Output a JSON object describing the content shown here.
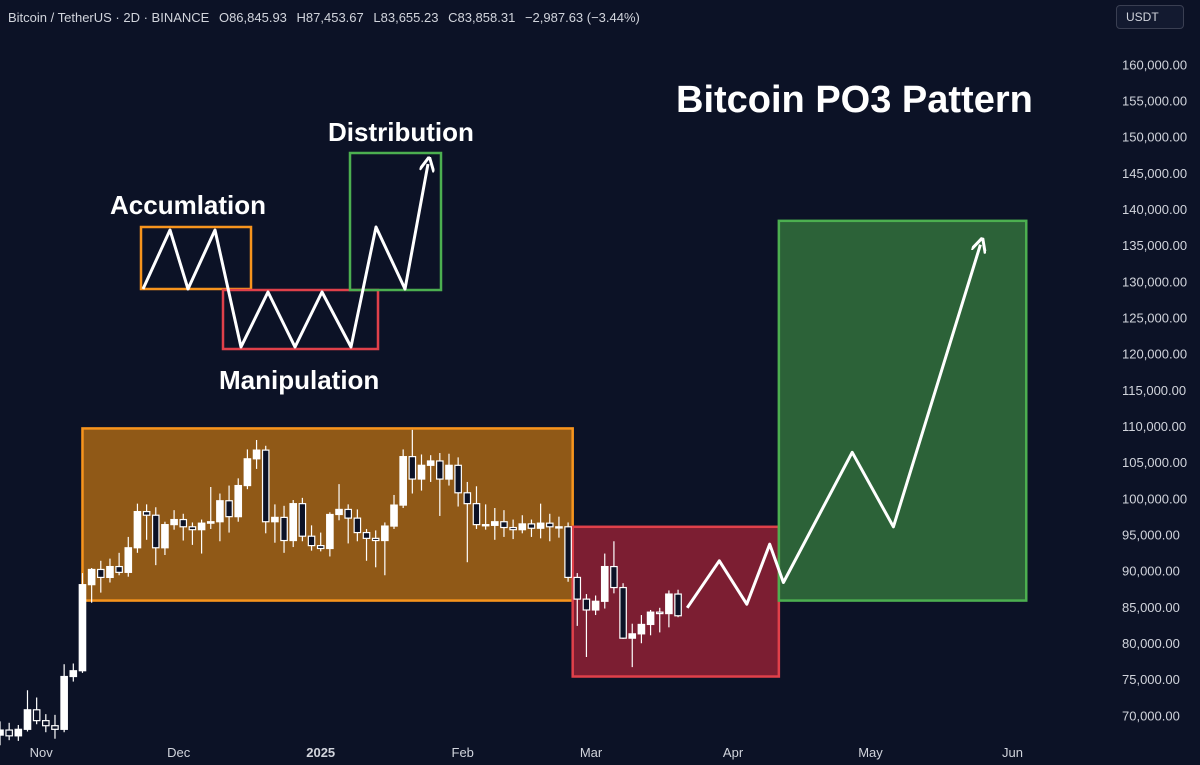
{
  "header": {
    "symbol": "Bitcoin / TetherUS · 2D · BINANCE",
    "open": "O86,845.93",
    "high": "H87,453.67",
    "low": "L83,655.23",
    "close": "C83,858.31",
    "change": "−2,987.63 (−3.44%)"
  },
  "currency_button": "USDT",
  "colors": {
    "background": "#0c1226",
    "candle": "#ffffff",
    "accumulation": "#f7941d",
    "manipulation": "#e0404a",
    "distribution": "#4caf50",
    "arrow": "#ffffff"
  },
  "chart_data": {
    "type": "candlestick",
    "title": "Bitcoin PO3 Pattern",
    "ylim": [
      67000,
      163500
    ],
    "y_ticks": [
      "160,000.00",
      "155,000.00",
      "150,000.00",
      "145,000.00",
      "140,000.00",
      "135,000.00",
      "130,000.00",
      "125,000.00",
      "120,000.00",
      "115,000.00",
      "110,000.00",
      "105,000.00",
      "100,000.00",
      "95,000.00",
      "90,000.00",
      "85,000.00",
      "80,000.00",
      "75,000.00",
      "70,000.00"
    ],
    "x_labels": [
      "Nov",
      "Dec",
      "2025",
      "Feb",
      "Mar",
      "Apr",
      "May",
      "Jun"
    ],
    "x_range": [
      "2024-10-23",
      "2025-06-07"
    ],
    "candle_interval_days": 2,
    "candles": [
      {
        "date": "2024-10-23",
        "o": 67400,
        "h": 69300,
        "l": 66000,
        "c": 68100
      },
      {
        "date": "2024-10-25",
        "o": 68100,
        "h": 69100,
        "l": 66700,
        "c": 67300
      },
      {
        "date": "2024-10-27",
        "o": 67300,
        "h": 68800,
        "l": 66600,
        "c": 68200
      },
      {
        "date": "2024-10-29",
        "o": 68200,
        "h": 73600,
        "l": 67900,
        "c": 70900
      },
      {
        "date": "2024-10-31",
        "o": 70900,
        "h": 72600,
        "l": 68900,
        "c": 69400
      },
      {
        "date": "2024-11-02",
        "o": 69400,
        "h": 70300,
        "l": 67800,
        "c": 68700
      },
      {
        "date": "2024-11-04",
        "o": 68700,
        "h": 70200,
        "l": 66900,
        "c": 68200
      },
      {
        "date": "2024-11-06",
        "o": 68200,
        "h": 77200,
        "l": 67800,
        "c": 75500
      },
      {
        "date": "2024-11-08",
        "o": 75500,
        "h": 77300,
        "l": 74800,
        "c": 76300
      },
      {
        "date": "2024-11-10",
        "o": 76300,
        "h": 89800,
        "l": 76000,
        "c": 88200
      },
      {
        "date": "2024-11-12",
        "o": 88200,
        "h": 90500,
        "l": 85700,
        "c": 90300
      },
      {
        "date": "2024-11-14",
        "o": 90300,
        "h": 91500,
        "l": 87100,
        "c": 89200
      },
      {
        "date": "2024-11-16",
        "o": 89200,
        "h": 91800,
        "l": 88500,
        "c": 90700
      },
      {
        "date": "2024-11-18",
        "o": 90700,
        "h": 92600,
        "l": 89500,
        "c": 89900
      },
      {
        "date": "2024-11-20",
        "o": 89900,
        "h": 94800,
        "l": 89300,
        "c": 93300
      },
      {
        "date": "2024-11-22",
        "o": 93300,
        "h": 99400,
        "l": 92600,
        "c": 98300
      },
      {
        "date": "2024-11-24",
        "o": 98300,
        "h": 99300,
        "l": 94400,
        "c": 97800
      },
      {
        "date": "2024-11-26",
        "o": 97800,
        "h": 98900,
        "l": 90900,
        "c": 93300
      },
      {
        "date": "2024-11-28",
        "o": 93300,
        "h": 96900,
        "l": 92300,
        "c": 96500
      },
      {
        "date": "2024-11-30",
        "o": 96500,
        "h": 98500,
        "l": 95800,
        "c": 97200
      },
      {
        "date": "2024-12-02",
        "o": 97200,
        "h": 98000,
        "l": 94300,
        "c": 96200
      },
      {
        "date": "2024-12-04",
        "o": 96200,
        "h": 96800,
        "l": 93700,
        "c": 95800
      },
      {
        "date": "2024-12-06",
        "o": 95800,
        "h": 97200,
        "l": 92500,
        "c": 96700
      },
      {
        "date": "2024-12-08",
        "o": 96700,
        "h": 101700,
        "l": 95900,
        "c": 96900
      },
      {
        "date": "2024-12-10",
        "o": 96900,
        "h": 100800,
        "l": 94200,
        "c": 99800
      },
      {
        "date": "2024-12-12",
        "o": 99800,
        "h": 101900,
        "l": 95400,
        "c": 97600
      },
      {
        "date": "2024-12-14",
        "o": 97600,
        "h": 102900,
        "l": 96900,
        "c": 101900
      },
      {
        "date": "2024-12-16",
        "o": 101900,
        "h": 106900,
        "l": 101400,
        "c": 105600
      },
      {
        "date": "2024-12-18",
        "o": 105600,
        "h": 108200,
        "l": 104200,
        "c": 106800
      },
      {
        "date": "2024-12-20",
        "o": 106800,
        "h": 107400,
        "l": 95300,
        "c": 96900
      },
      {
        "date": "2024-12-22",
        "o": 96900,
        "h": 99300,
        "l": 94000,
        "c": 97500
      },
      {
        "date": "2024-12-24",
        "o": 97500,
        "h": 99100,
        "l": 92600,
        "c": 94300
      },
      {
        "date": "2024-12-26",
        "o": 94300,
        "h": 99900,
        "l": 93400,
        "c": 99400
      },
      {
        "date": "2024-12-28",
        "o": 99400,
        "h": 100200,
        "l": 94200,
        "c": 94900
      },
      {
        "date": "2024-12-30",
        "o": 94900,
        "h": 96400,
        "l": 92900,
        "c": 93600
      },
      {
        "date": "2025-01-01",
        "o": 93600,
        "h": 95400,
        "l": 92800,
        "c": 93200
      },
      {
        "date": "2025-01-03",
        "o": 93200,
        "h": 98200,
        "l": 92100,
        "c": 97900
      },
      {
        "date": "2025-01-05",
        "o": 97900,
        "h": 102100,
        "l": 97100,
        "c": 98600
      },
      {
        "date": "2025-01-07",
        "o": 98600,
        "h": 99300,
        "l": 93900,
        "c": 97400
      },
      {
        "date": "2025-01-09",
        "o": 97400,
        "h": 98600,
        "l": 94200,
        "c": 95400
      },
      {
        "date": "2025-01-11",
        "o": 95400,
        "h": 95900,
        "l": 91500,
        "c": 94600
      },
      {
        "date": "2025-01-13",
        "o": 94600,
        "h": 95700,
        "l": 90600,
        "c": 94300
      },
      {
        "date": "2025-01-15",
        "o": 94300,
        "h": 96800,
        "l": 89500,
        "c": 96300
      },
      {
        "date": "2025-01-17",
        "o": 96300,
        "h": 100600,
        "l": 95900,
        "c": 99200
      },
      {
        "date": "2025-01-19",
        "o": 99200,
        "h": 106900,
        "l": 98800,
        "c": 105900
      },
      {
        "date": "2025-01-21",
        "o": 105900,
        "h": 109600,
        "l": 100800,
        "c": 102800
      },
      {
        "date": "2025-01-23",
        "o": 102800,
        "h": 106200,
        "l": 101200,
        "c": 104700
      },
      {
        "date": "2025-01-25",
        "o": 104700,
        "h": 106100,
        "l": 102400,
        "c": 105300
      },
      {
        "date": "2025-01-27",
        "o": 105300,
        "h": 106400,
        "l": 97700,
        "c": 102800
      },
      {
        "date": "2025-01-29",
        "o": 102800,
        "h": 106300,
        "l": 101900,
        "c": 104700
      },
      {
        "date": "2025-01-31",
        "o": 104700,
        "h": 105800,
        "l": 99000,
        "c": 100900
      },
      {
        "date": "2025-02-02",
        "o": 100900,
        "h": 102400,
        "l": 91300,
        "c": 99400
      },
      {
        "date": "2025-02-04",
        "o": 99400,
        "h": 101800,
        "l": 95900,
        "c": 96500
      },
      {
        "date": "2025-02-06",
        "o": 96500,
        "h": 99300,
        "l": 95800,
        "c": 96400
      },
      {
        "date": "2025-02-08",
        "o": 96400,
        "h": 98800,
        "l": 94400,
        "c": 96900
      },
      {
        "date": "2025-02-10",
        "o": 96900,
        "h": 98500,
        "l": 94800,
        "c": 96100
      },
      {
        "date": "2025-02-12",
        "o": 96100,
        "h": 97200,
        "l": 94500,
        "c": 95800
      },
      {
        "date": "2025-02-14",
        "o": 95800,
        "h": 97800,
        "l": 95300,
        "c": 96600
      },
      {
        "date": "2025-02-16",
        "o": 96600,
        "h": 97200,
        "l": 94800,
        "c": 96000
      },
      {
        "date": "2025-02-18",
        "o": 96000,
        "h": 99400,
        "l": 94600,
        "c": 96700
      },
      {
        "date": "2025-02-20",
        "o": 96700,
        "h": 98000,
        "l": 94200,
        "c": 96200
      },
      {
        "date": "2025-02-22",
        "o": 96200,
        "h": 97600,
        "l": 94700,
        "c": 96200
      },
      {
        "date": "2025-02-24",
        "o": 96200,
        "h": 96800,
        "l": 88600,
        "c": 89200
      },
      {
        "date": "2025-02-26",
        "o": 89200,
        "h": 89800,
        "l": 82500,
        "c": 86200
      },
      {
        "date": "2025-02-28",
        "o": 86200,
        "h": 86900,
        "l": 78200,
        "c": 84700
      },
      {
        "date": "2025-03-02",
        "o": 84700,
        "h": 86700,
        "l": 84000,
        "c": 85900
      },
      {
        "date": "2025-03-04",
        "o": 85900,
        "h": 92500,
        "l": 84900,
        "c": 90700
      },
      {
        "date": "2025-03-06",
        "o": 90700,
        "h": 94200,
        "l": 87000,
        "c": 87800
      },
      {
        "date": "2025-03-08",
        "o": 87800,
        "h": 88400,
        "l": 80700,
        "c": 80800
      },
      {
        "date": "2025-03-10",
        "o": 80800,
        "h": 82800,
        "l": 76800,
        "c": 81400
      },
      {
        "date": "2025-03-12",
        "o": 81400,
        "h": 84000,
        "l": 80100,
        "c": 82700
      },
      {
        "date": "2025-03-14",
        "o": 82700,
        "h": 84700,
        "l": 81200,
        "c": 84400
      },
      {
        "date": "2025-03-16",
        "o": 84400,
        "h": 85000,
        "l": 81600,
        "c": 84200
      },
      {
        "date": "2025-03-18",
        "o": 84200,
        "h": 87400,
        "l": 82300,
        "c": 86900
      },
      {
        "date": "2025-03-20",
        "o": 86900,
        "h": 87500,
        "l": 83700,
        "c": 83900
      }
    ],
    "zones": [
      {
        "name": "accumulation",
        "x0": "2024-11-10",
        "x1": "2025-02-25",
        "y0": 86000,
        "y1": 109800
      },
      {
        "name": "manipulation",
        "x0": "2025-02-25",
        "x1": "2025-04-11",
        "y0": 75500,
        "y1": 96200
      },
      {
        "name": "distribution",
        "x0": "2025-04-11",
        "x1": "2025-06-04",
        "y0": 86000,
        "y1": 138500
      }
    ],
    "projection": [
      {
        "date": "2025-03-22",
        "y": 85000
      },
      {
        "date": "2025-03-29",
        "y": 91500
      },
      {
        "date": "2025-04-04",
        "y": 85500
      },
      {
        "date": "2025-04-09",
        "y": 93800
      },
      {
        "date": "2025-04-12",
        "y": 88500
      },
      {
        "date": "2025-04-27",
        "y": 106500
      },
      {
        "date": "2025-05-06",
        "y": 96200
      },
      {
        "date": "2025-05-25",
        "y": 135200
      }
    ]
  },
  "legend": {
    "accumulation_label": "Accumlation",
    "manipulation_label": "Manipulation",
    "distribution_label": "Distribution"
  }
}
